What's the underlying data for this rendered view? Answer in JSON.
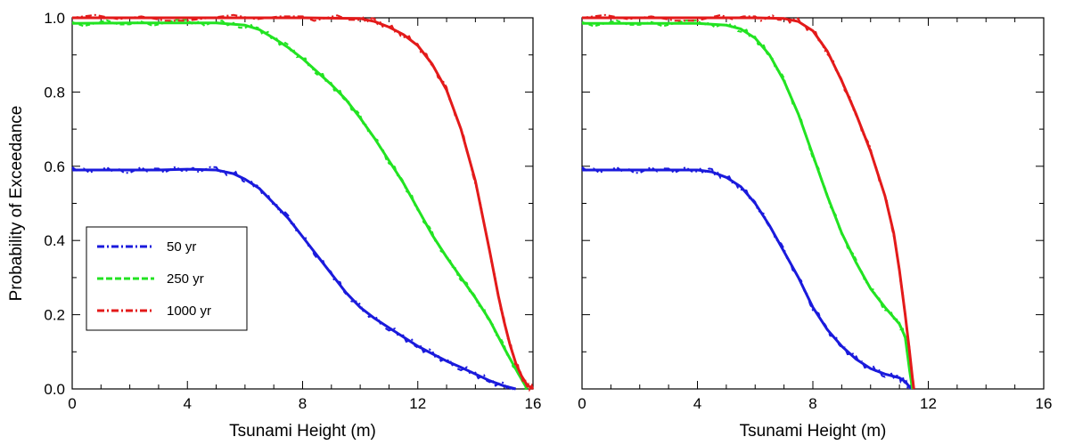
{
  "chart_data": [
    {
      "type": "line",
      "panel": "left",
      "xlabel": "Tsunami Height (m)",
      "ylabel": "Probability of Exceedance",
      "xlim": [
        0,
        16
      ],
      "ylim": [
        0,
        1.0
      ],
      "xticks": [
        "0",
        "4",
        "8",
        "12",
        "16"
      ],
      "yticks": [
        "0.0",
        "0.2",
        "0.4",
        "0.6",
        "0.8",
        "1.0"
      ],
      "grid": false,
      "legend": {
        "placement": "center-left",
        "entries": [
          {
            "label": "50 yr",
            "color": "#1a1adc",
            "style": "dash-dot"
          },
          {
            "label": "250 yr",
            "color": "#22e322",
            "style": "dashed"
          },
          {
            "label": "1000 yr",
            "color": "#e31a1a",
            "style": "dash-dot"
          }
        ]
      },
      "series": [
        {
          "name": "50 yr",
          "color": "#1a1adc",
          "x": [
            0,
            1,
            2,
            3,
            4,
            5,
            5.6,
            6,
            6.5,
            7,
            7.5,
            8,
            8.5,
            9,
            9.5,
            10,
            10.5,
            11,
            11.5,
            12,
            12.5,
            13,
            13.5,
            14,
            14.5,
            15,
            15.4
          ],
          "y": [
            0.59,
            0.59,
            0.59,
            0.59,
            0.592,
            0.59,
            0.58,
            0.565,
            0.54,
            0.5,
            0.46,
            0.41,
            0.36,
            0.31,
            0.26,
            0.22,
            0.19,
            0.165,
            0.14,
            0.115,
            0.095,
            0.075,
            0.058,
            0.04,
            0.022,
            0.008,
            0.0
          ]
        },
        {
          "name": "250 yr",
          "color": "#22e322",
          "x": [
            0,
            2,
            4,
            5,
            6,
            6.5,
            7,
            7.5,
            8,
            8.5,
            9,
            9.5,
            10,
            10.5,
            11,
            11.5,
            12,
            12.5,
            13,
            13.5,
            14,
            14.5,
            15,
            15.5,
            15.8
          ],
          "y": [
            0.985,
            0.986,
            0.986,
            0.986,
            0.98,
            0.968,
            0.945,
            0.92,
            0.89,
            0.855,
            0.82,
            0.78,
            0.73,
            0.675,
            0.615,
            0.555,
            0.485,
            0.415,
            0.355,
            0.3,
            0.245,
            0.185,
            0.11,
            0.04,
            0.0
          ]
        },
        {
          "name": "1000 yr",
          "color": "#e31a1a",
          "x": [
            0,
            4,
            8,
            10,
            10.5,
            11,
            11.5,
            12,
            12.5,
            13,
            13.5,
            14,
            14.5,
            14.8,
            15,
            15.2,
            15.4,
            15.6,
            15.8,
            16
          ],
          "y": [
            1.0,
            1.0,
            1.0,
            0.998,
            0.99,
            0.975,
            0.955,
            0.925,
            0.875,
            0.805,
            0.7,
            0.56,
            0.37,
            0.25,
            0.18,
            0.12,
            0.07,
            0.035,
            0.01,
            0.0
          ]
        }
      ]
    },
    {
      "type": "line",
      "panel": "right",
      "xlabel": "Tsunami Height (m)",
      "ylabel": "",
      "xlim": [
        0,
        16
      ],
      "ylim": [
        0,
        1.0
      ],
      "xticks": [
        "0",
        "4",
        "8",
        "12",
        "16"
      ],
      "yticks": [],
      "grid": false,
      "series": [
        {
          "name": "50 yr",
          "color": "#1a1adc",
          "x": [
            0,
            1,
            2,
            3,
            4,
            4.5,
            5,
            5.5,
            6,
            6.5,
            7,
            7.5,
            8,
            8.5,
            9,
            9.5,
            10,
            10.5,
            11,
            11.2,
            11.4
          ],
          "y": [
            0.59,
            0.59,
            0.59,
            0.59,
            0.59,
            0.585,
            0.57,
            0.545,
            0.5,
            0.44,
            0.37,
            0.3,
            0.22,
            0.16,
            0.115,
            0.08,
            0.055,
            0.04,
            0.03,
            0.02,
            0.0
          ]
        },
        {
          "name": "250 yr",
          "color": "#22e322",
          "x": [
            0,
            2,
            4,
            5,
            5.5,
            6,
            6.5,
            7,
            7.5,
            8,
            8.5,
            9,
            9.5,
            10,
            10.5,
            11,
            11.2,
            11.35,
            11.45
          ],
          "y": [
            0.985,
            0.985,
            0.985,
            0.98,
            0.97,
            0.945,
            0.9,
            0.83,
            0.74,
            0.63,
            0.52,
            0.42,
            0.34,
            0.27,
            0.22,
            0.175,
            0.14,
            0.05,
            0.0
          ]
        },
        {
          "name": "1000 yr",
          "color": "#e31a1a",
          "x": [
            0,
            4,
            6,
            7,
            7.5,
            8,
            8.5,
            9,
            9.5,
            10,
            10.5,
            10.8,
            11,
            11.2,
            11.35,
            11.45,
            11.5
          ],
          "y": [
            1.0,
            1.0,
            1.0,
            0.998,
            0.99,
            0.965,
            0.91,
            0.83,
            0.74,
            0.64,
            0.52,
            0.42,
            0.32,
            0.2,
            0.1,
            0.03,
            0.0
          ]
        }
      ]
    }
  ]
}
